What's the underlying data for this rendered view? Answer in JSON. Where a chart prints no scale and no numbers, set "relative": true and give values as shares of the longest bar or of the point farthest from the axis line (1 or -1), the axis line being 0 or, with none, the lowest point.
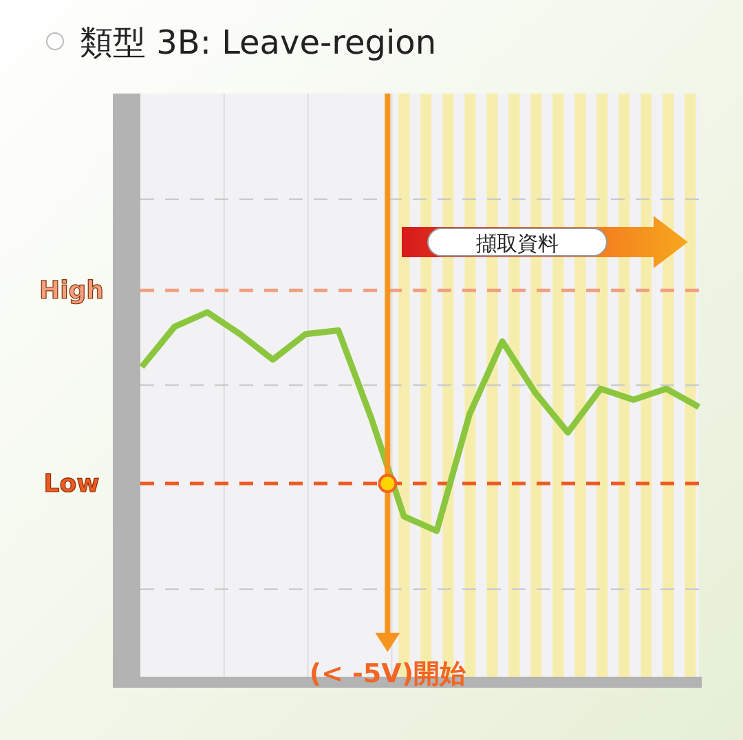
{
  "chart_data": {
    "type": "line",
    "title": "類型 3B: Leave-region",
    "relative": true,
    "grid": "x",
    "marker": "none",
    "line_style": "solid",
    "categories": [
      null,
      null,
      null,
      null,
      null,
      null,
      null,
      null,
      null,
      null,
      null,
      null,
      null,
      null,
      null,
      null,
      null,
      null
    ],
    "series": [
      {
        "color": "#8cc63f",
        "values": [
          0.85,
          0.96,
          1.0,
          0.94,
          0.87,
          0.94,
          0.95,
          0.71,
          0.44,
          0.4,
          0.72,
          0.92,
          0.78,
          0.67,
          0.79,
          0.76,
          0.79,
          0.74
        ]
      }
    ],
    "ref_lines": [
      {
        "axis": "y",
        "value": 1.31,
        "color": "#cccccc",
        "line_style": "dashed"
      },
      {
        "axis": "y",
        "value": 0.8,
        "color": "#cccccc",
        "line_style": "dashed"
      },
      {
        "axis": "y",
        "value": 0.24,
        "color": "#cccccc",
        "line_style": "dashed"
      },
      {
        "axis": "y",
        "value": 1.06,
        "label": "High",
        "color": "#f0a080",
        "line_style": "dashed"
      },
      {
        "axis": "y",
        "value": 0.53,
        "label": "Low",
        "color": "#ee5a24",
        "line_style": "dashed"
      }
    ],
    "annotations": [
      "擷取資料",
      "(< -5V)開始"
    ]
  }
}
